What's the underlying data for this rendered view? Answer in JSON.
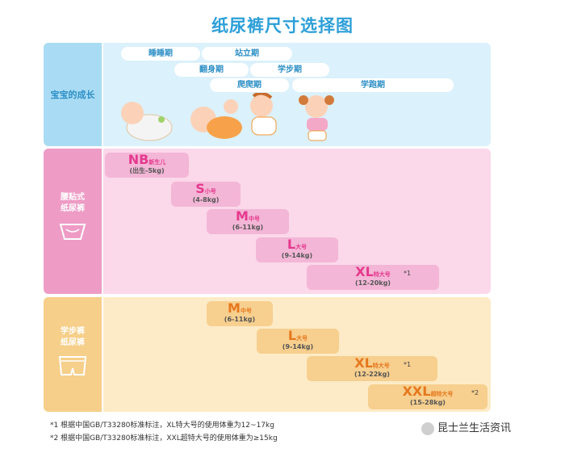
{
  "title": "纸尿裤尺寸选择图",
  "growth": {
    "label": "宝宝的成长",
    "stages": [
      "睡睡期",
      "站立期",
      "翻身期",
      "学步期",
      "爬爬期",
      "学跑期"
    ]
  },
  "tape": {
    "label_lines": [
      "腰贴式",
      "纸尿裤"
    ],
    "sizes": [
      {
        "size": "NB",
        "name": "新生儿",
        "range": "(出生-5kg)",
        "note": ""
      },
      {
        "size": "S",
        "name": "小号",
        "range": "(4-8kg)",
        "note": ""
      },
      {
        "size": "M",
        "name": "中号",
        "range": "(6-11kg)",
        "note": ""
      },
      {
        "size": "L",
        "name": "大号",
        "range": "(9-14kg)",
        "note": ""
      },
      {
        "size": "XL",
        "name": "特大号",
        "range": "(12-20kg)",
        "note": "*1"
      }
    ]
  },
  "pull": {
    "label_lines": [
      "学步裤",
      "纸尿裤"
    ],
    "sizes": [
      {
        "size": "M",
        "name": "中号",
        "range": "(6-11kg)",
        "note": ""
      },
      {
        "size": "L",
        "name": "大号",
        "range": "(9-14kg)",
        "note": ""
      },
      {
        "size": "XL",
        "name": "特大号",
        "range": "(12-22kg)",
        "note": "*1"
      },
      {
        "size": "XXL",
        "name": "超特大号",
        "range": "(15-28kg)",
        "note": "*2"
      }
    ]
  },
  "footnotes": [
    "*1 根据中国GB/T33280标准标注，XL特大号的使用体重为12~17kg",
    "*2 根据中国GB/T33280标准标注，XXL超特大号的使用体重为≥15kg"
  ],
  "watermark": "昆士兰生活资讯",
  "colors": {
    "title": "#2d9fd8",
    "tape_accent": "#e5398e",
    "pull_accent": "#e6781e"
  }
}
